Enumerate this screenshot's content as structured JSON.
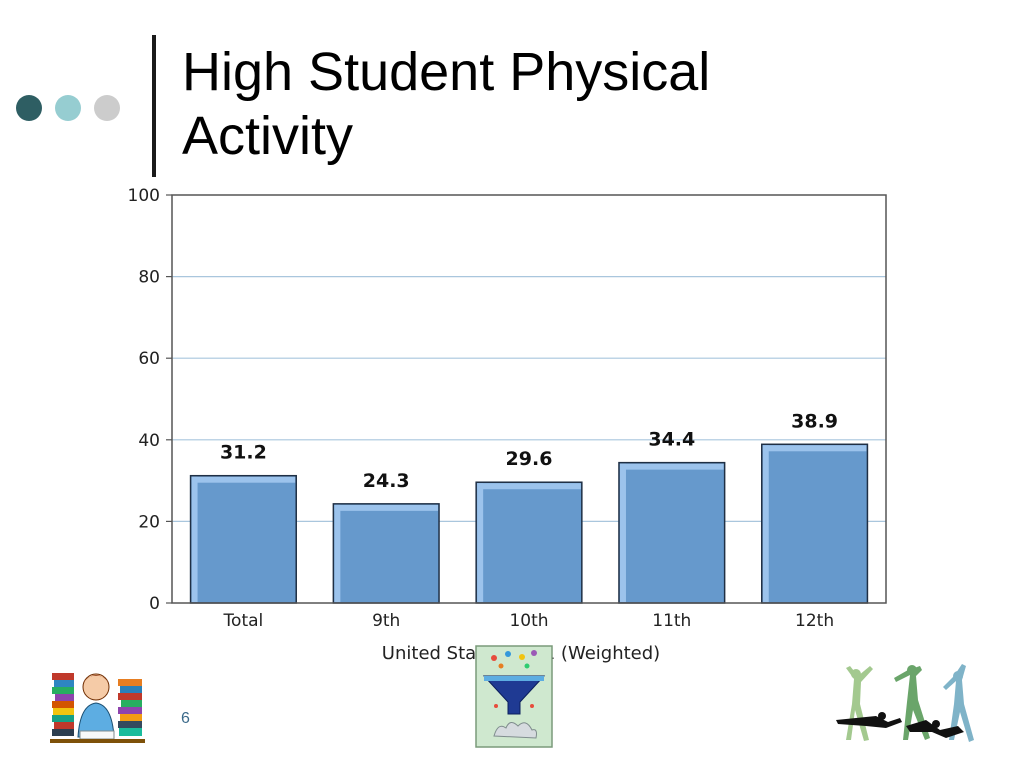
{
  "slide": {
    "title": "High Student Physical Activity",
    "number": "6",
    "accent_dots": [
      "#2e5e63",
      "#96cdd1",
      "#cccccc"
    ]
  },
  "chart_data": {
    "type": "bar",
    "categories": [
      "Total",
      "9th",
      "10th",
      "11th",
      "12th"
    ],
    "values": [
      31.2,
      24.3,
      29.6,
      34.4,
      38.9
    ],
    "data_labels": [
      "31.2",
      "24.3",
      "29.6",
      "34.4",
      "38.9"
    ],
    "title": "",
    "xlabel": "United States 2001 (Weighted)",
    "ylabel": "",
    "ylim": [
      0,
      100
    ],
    "yticks": [
      0,
      20,
      40,
      60,
      80,
      100
    ],
    "grid": true,
    "colors": {
      "bar": "#6699cc",
      "bar_highlight": "#9cc3ec",
      "bar_edge": "#1f2f44",
      "grid": "#a9c6dd"
    }
  },
  "clipart": {
    "left": "student-reading-books-clipart",
    "center": "funnel-idea-poster-clipart",
    "right": "dancers-silhouettes-clipart"
  }
}
